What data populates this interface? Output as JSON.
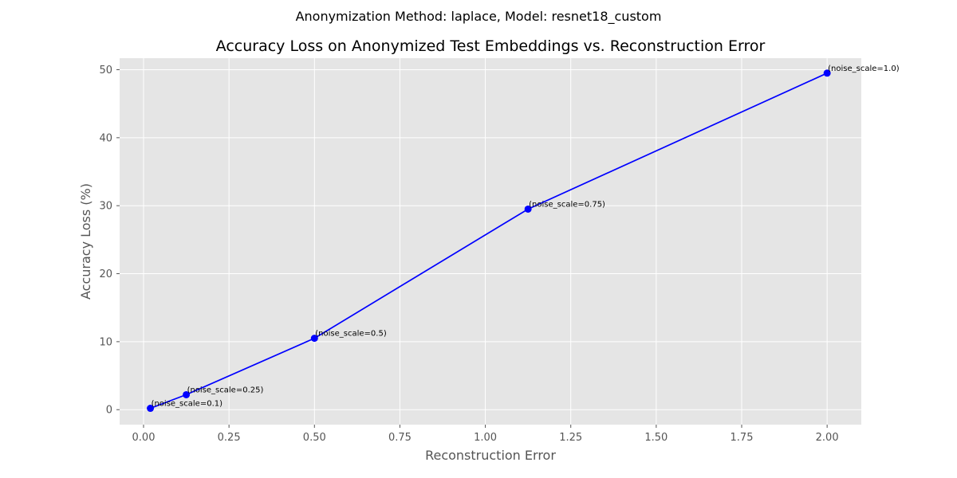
{
  "figure": {
    "suptitle": "Anonymization Method: laplace, Model: resnet18_custom"
  },
  "chart_data": {
    "type": "line",
    "title": "Accuracy Loss on Anonymized Test Embeddings vs. Reconstruction Error",
    "xlabel": "Reconstruction Error",
    "ylabel": "Accuracy Loss (%)",
    "xlim": [
      -0.07,
      2.1
    ],
    "ylim": [
      -2.2,
      51.7
    ],
    "xticks": [
      0.0,
      0.25,
      0.5,
      0.75,
      1.0,
      1.25,
      1.5,
      1.75,
      2.0
    ],
    "xtick_labels": [
      "0.00",
      "0.25",
      "0.50",
      "0.75",
      "1.00",
      "1.25",
      "1.50",
      "1.75",
      "2.00"
    ],
    "yticks": [
      0,
      10,
      20,
      30,
      40,
      50
    ],
    "ytick_labels": [
      "0",
      "10",
      "20",
      "30",
      "40",
      "50"
    ],
    "grid": true,
    "background": "#e5e5e5",
    "series": [
      {
        "color": "#0000ff",
        "x": [
          0.02,
          0.125,
          0.5,
          1.125,
          2.0
        ],
        "y": [
          0.2,
          2.2,
          10.5,
          29.5,
          49.5
        ],
        "labels": [
          "(noise_scale=0.1)",
          "(noise_scale=0.25)",
          "(noise_scale=0.5)",
          "(noise_scale=0.75)",
          "(noise_scale=1.0)"
        ]
      }
    ]
  }
}
